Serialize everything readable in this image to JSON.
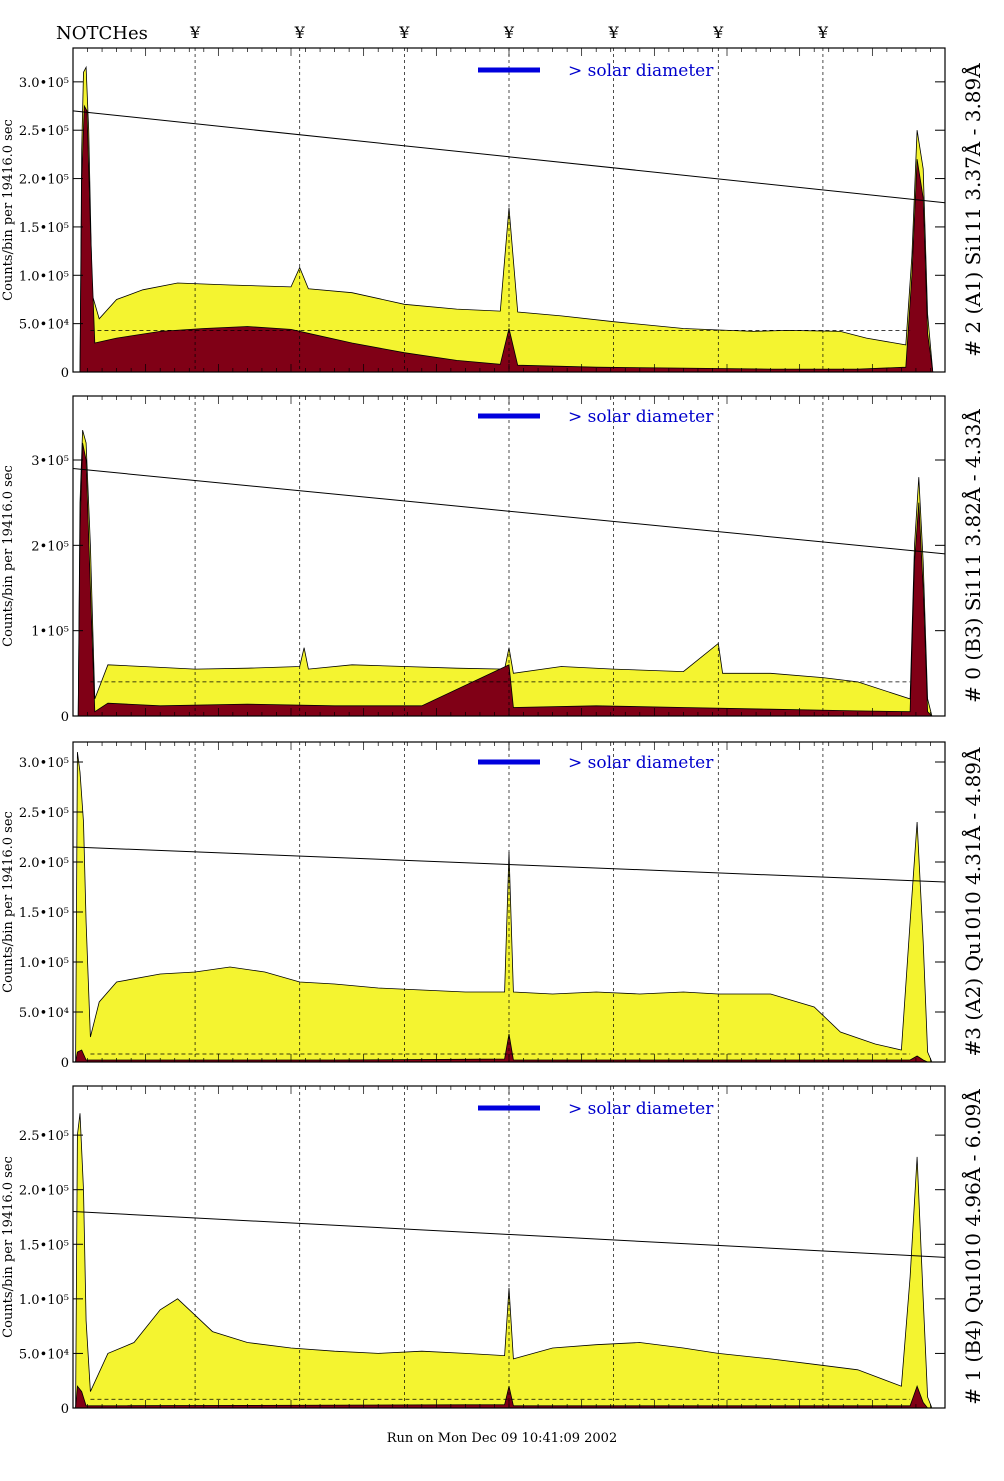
{
  "header": {
    "notch_label": "NOTCHes",
    "notch_symbol": "¥",
    "notch_x": [
      0.14,
      0.26,
      0.38,
      0.5,
      0.62,
      0.74,
      0.86
    ]
  },
  "legend_label": "> solar diameter",
  "footer": "Run on Mon Dec 09 10:41:09 2002",
  "colors": {
    "fill_total": "#f4f430",
    "fill_sub": "#800016",
    "legend_line": "#0000dd",
    "legend_text": "#0000cc",
    "trend": "#000000"
  },
  "chart_data": [
    {
      "type": "area",
      "title": "# 2 (A1) Si111  3.37Å - 3.89Å",
      "ylabel": "Counts/bin per  19416.0 sec",
      "ylim": [
        0,
        335000
      ],
      "yticks": [
        {
          "v": 0,
          "label": "0"
        },
        {
          "v": 50000,
          "label": "5.0•10⁴"
        },
        {
          "v": 100000,
          "label": "1.0•10⁵"
        },
        {
          "v": 150000,
          "label": "1.5•10⁵"
        },
        {
          "v": 200000,
          "label": "2.0•10⁵"
        },
        {
          "v": 250000,
          "label": "2.5•10⁵"
        },
        {
          "v": 300000,
          "label": "3.0•10⁵"
        }
      ],
      "trend": [
        270000,
        175000
      ],
      "dashed_level": 43000,
      "series": [
        {
          "key": "total",
          "points": [
            [
              0,
              0
            ],
            [
              0.008,
              0
            ],
            [
              0.01,
              230000
            ],
            [
              0.012,
              310000
            ],
            [
              0.015,
              315000
            ],
            [
              0.018,
              250000
            ],
            [
              0.022,
              80000
            ],
            [
              0.03,
              55000
            ],
            [
              0.05,
              75000
            ],
            [
              0.08,
              85000
            ],
            [
              0.12,
              92000
            ],
            [
              0.18,
              90000
            ],
            [
              0.25,
              88000
            ],
            [
              0.26,
              108000
            ],
            [
              0.27,
              86000
            ],
            [
              0.32,
              82000
            ],
            [
              0.38,
              70000
            ],
            [
              0.44,
              65000
            ],
            [
              0.49,
              63000
            ],
            [
              0.5,
              170000
            ],
            [
              0.51,
              62000
            ],
            [
              0.56,
              58000
            ],
            [
              0.62,
              52000
            ],
            [
              0.7,
              45000
            ],
            [
              0.78,
              42000
            ],
            [
              0.82,
              43000
            ],
            [
              0.88,
              42000
            ],
            [
              0.91,
              35000
            ],
            [
              0.955,
              28000
            ],
            [
              0.962,
              120000
            ],
            [
              0.968,
              250000
            ],
            [
              0.975,
              210000
            ],
            [
              0.98,
              60000
            ],
            [
              0.986,
              0
            ],
            [
              1,
              0
            ]
          ]
        },
        {
          "key": "sub",
          "points": [
            [
              0,
              0
            ],
            [
              0.008,
              0
            ],
            [
              0.01,
              200000
            ],
            [
              0.013,
              275000
            ],
            [
              0.016,
              270000
            ],
            [
              0.02,
              150000
            ],
            [
              0.025,
              30000
            ],
            [
              0.05,
              35000
            ],
            [
              0.1,
              42000
            ],
            [
              0.15,
              45000
            ],
            [
              0.2,
              47000
            ],
            [
              0.25,
              44000
            ],
            [
              0.27,
              40000
            ],
            [
              0.32,
              30000
            ],
            [
              0.38,
              20000
            ],
            [
              0.44,
              12000
            ],
            [
              0.49,
              8000
            ],
            [
              0.5,
              45000
            ],
            [
              0.51,
              7000
            ],
            [
              0.6,
              5000
            ],
            [
              0.7,
              4000
            ],
            [
              0.8,
              3000
            ],
            [
              0.9,
              3000
            ],
            [
              0.955,
              5000
            ],
            [
              0.962,
              100000
            ],
            [
              0.968,
              220000
            ],
            [
              0.975,
              180000
            ],
            [
              0.98,
              40000
            ],
            [
              0.986,
              0
            ],
            [
              1,
              0
            ]
          ]
        }
      ]
    },
    {
      "type": "area",
      "title": "# 0 (B3) Si111  3.82Å - 4.33Å",
      "ylabel": "Counts/bin per  19416.0 sec",
      "ylim": [
        0,
        375000
      ],
      "yticks": [
        {
          "v": 0,
          "label": "0"
        },
        {
          "v": 100000,
          "label": "1•10⁵"
        },
        {
          "v": 200000,
          "label": "2•10⁵"
        },
        {
          "v": 300000,
          "label": "3•10⁵"
        }
      ],
      "trend": [
        290000,
        190000
      ],
      "dashed_level": 40000,
      "series": [
        {
          "key": "total",
          "points": [
            [
              0,
              0
            ],
            [
              0.006,
              0
            ],
            [
              0.008,
              250000
            ],
            [
              0.011,
              335000
            ],
            [
              0.015,
              320000
            ],
            [
              0.02,
              200000
            ],
            [
              0.025,
              20000
            ],
            [
              0.04,
              60000
            ],
            [
              0.08,
              58000
            ],
            [
              0.14,
              55000
            ],
            [
              0.2,
              56000
            ],
            [
              0.26,
              58000
            ],
            [
              0.265,
              80000
            ],
            [
              0.27,
              55000
            ],
            [
              0.32,
              60000
            ],
            [
              0.38,
              58000
            ],
            [
              0.44,
              56000
            ],
            [
              0.495,
              55000
            ],
            [
              0.5,
              80000
            ],
            [
              0.505,
              50000
            ],
            [
              0.56,
              58000
            ],
            [
              0.62,
              55000
            ],
            [
              0.7,
              52000
            ],
            [
              0.74,
              85000
            ],
            [
              0.745,
              50000
            ],
            [
              0.8,
              50000
            ],
            [
              0.86,
              45000
            ],
            [
              0.9,
              40000
            ],
            [
              0.96,
              20000
            ],
            [
              0.965,
              200000
            ],
            [
              0.97,
              280000
            ],
            [
              0.975,
              180000
            ],
            [
              0.98,
              20000
            ],
            [
              0.985,
              0
            ],
            [
              1,
              0
            ]
          ]
        },
        {
          "key": "sub",
          "points": [
            [
              0,
              0
            ],
            [
              0.006,
              0
            ],
            [
              0.008,
              220000
            ],
            [
              0.011,
              320000
            ],
            [
              0.015,
              300000
            ],
            [
              0.02,
              150000
            ],
            [
              0.025,
              5000
            ],
            [
              0.04,
              15000
            ],
            [
              0.1,
              12000
            ],
            [
              0.2,
              14000
            ],
            [
              0.3,
              12000
            ],
            [
              0.4,
              12000
            ],
            [
              0.5,
              60000
            ],
            [
              0.505,
              10000
            ],
            [
              0.6,
              12000
            ],
            [
              0.7,
              10000
            ],
            [
              0.8,
              8000
            ],
            [
              0.9,
              6000
            ],
            [
              0.96,
              5000
            ],
            [
              0.965,
              180000
            ],
            [
              0.97,
              250000
            ],
            [
              0.975,
              150000
            ],
            [
              0.98,
              5000
            ],
            [
              0.985,
              0
            ],
            [
              1,
              0
            ]
          ]
        }
      ]
    },
    {
      "type": "area",
      "title": "#3 (A2) Qu1010  4.31Å - 4.89Å",
      "ylabel": "Counts/bin per  19416.0 sec",
      "ylim": [
        0,
        320000
      ],
      "yticks": [
        {
          "v": 0,
          "label": "0"
        },
        {
          "v": 50000,
          "label": "5.0•10⁴"
        },
        {
          "v": 100000,
          "label": "1.0•10⁵"
        },
        {
          "v": 150000,
          "label": "1.5•10⁵"
        },
        {
          "v": 200000,
          "label": "2.0•10⁵"
        },
        {
          "v": 250000,
          "label": "2.5•10⁵"
        },
        {
          "v": 300000,
          "label": "3.0•10⁵"
        }
      ],
      "trend": [
        215000,
        180000
      ],
      "dashed_level": 8000,
      "series": [
        {
          "key": "total",
          "points": [
            [
              0,
              0
            ],
            [
              0.003,
              0
            ],
            [
              0.005,
              310000
            ],
            [
              0.008,
              290000
            ],
            [
              0.012,
              240000
            ],
            [
              0.015,
              140000
            ],
            [
              0.02,
              25000
            ],
            [
              0.03,
              60000
            ],
            [
              0.05,
              80000
            ],
            [
              0.1,
              88000
            ],
            [
              0.14,
              90000
            ],
            [
              0.18,
              95000
            ],
            [
              0.22,
              90000
            ],
            [
              0.26,
              80000
            ],
            [
              0.3,
              78000
            ],
            [
              0.35,
              74000
            ],
            [
              0.4,
              72000
            ],
            [
              0.45,
              70000
            ],
            [
              0.495,
              70000
            ],
            [
              0.5,
              210000
            ],
            [
              0.505,
              70000
            ],
            [
              0.55,
              68000
            ],
            [
              0.6,
              70000
            ],
            [
              0.65,
              68000
            ],
            [
              0.7,
              70000
            ],
            [
              0.74,
              68000
            ],
            [
              0.8,
              68000
            ],
            [
              0.85,
              55000
            ],
            [
              0.88,
              30000
            ],
            [
              0.92,
              18000
            ],
            [
              0.95,
              12000
            ],
            [
              0.96,
              140000
            ],
            [
              0.968,
              240000
            ],
            [
              0.975,
              120000
            ],
            [
              0.98,
              10000
            ],
            [
              0.985,
              0
            ],
            [
              1,
              0
            ]
          ]
        },
        {
          "key": "sub",
          "points": [
            [
              0,
              0
            ],
            [
              0.003,
              0
            ],
            [
              0.005,
              10000
            ],
            [
              0.01,
              12000
            ],
            [
              0.015,
              2000
            ],
            [
              0.3,
              2000
            ],
            [
              0.495,
              3000
            ],
            [
              0.5,
              28000
            ],
            [
              0.505,
              2000
            ],
            [
              0.96,
              2000
            ],
            [
              0.968,
              6000
            ],
            [
              0.975,
              2000
            ],
            [
              0.98,
              0
            ],
            [
              1,
              0
            ]
          ]
        }
      ]
    },
    {
      "type": "area",
      "title": "# 1 (B4) Qu1010 4.96Å - 6.09Å",
      "ylabel": "Counts/bin per  19416.0 sec",
      "ylim": [
        0,
        295000
      ],
      "yticks": [
        {
          "v": 0,
          "label": "0"
        },
        {
          "v": 50000,
          "label": "5.0•10⁴"
        },
        {
          "v": 100000,
          "label": "1.0•10⁵"
        },
        {
          "v": 150000,
          "label": "1.5•10⁵"
        },
        {
          "v": 200000,
          "label": "2.0•10⁵"
        },
        {
          "v": 250000,
          "label": "2.5•10⁵"
        }
      ],
      "trend": [
        180000,
        138000
      ],
      "dashed_level": 8000,
      "series": [
        {
          "key": "total",
          "points": [
            [
              0,
              0
            ],
            [
              0.003,
              0
            ],
            [
              0.005,
              250000
            ],
            [
              0.008,
              270000
            ],
            [
              0.012,
              200000
            ],
            [
              0.015,
              80000
            ],
            [
              0.02,
              15000
            ],
            [
              0.04,
              50000
            ],
            [
              0.07,
              60000
            ],
            [
              0.1,
              90000
            ],
            [
              0.12,
              100000
            ],
            [
              0.14,
              85000
            ],
            [
              0.16,
              70000
            ],
            [
              0.2,
              60000
            ],
            [
              0.25,
              55000
            ],
            [
              0.3,
              52000
            ],
            [
              0.35,
              50000
            ],
            [
              0.4,
              52000
            ],
            [
              0.45,
              50000
            ],
            [
              0.495,
              48000
            ],
            [
              0.5,
              110000
            ],
            [
              0.505,
              45000
            ],
            [
              0.55,
              55000
            ],
            [
              0.6,
              58000
            ],
            [
              0.65,
              60000
            ],
            [
              0.7,
              55000
            ],
            [
              0.74,
              50000
            ],
            [
              0.8,
              45000
            ],
            [
              0.85,
              40000
            ],
            [
              0.9,
              35000
            ],
            [
              0.95,
              20000
            ],
            [
              0.96,
              120000
            ],
            [
              0.968,
              230000
            ],
            [
              0.975,
              100000
            ],
            [
              0.98,
              10000
            ],
            [
              0.985,
              0
            ],
            [
              1,
              0
            ]
          ]
        },
        {
          "key": "sub",
          "points": [
            [
              0,
              0
            ],
            [
              0.003,
              0
            ],
            [
              0.005,
              20000
            ],
            [
              0.01,
              15000
            ],
            [
              0.015,
              2000
            ],
            [
              0.495,
              3000
            ],
            [
              0.5,
              20000
            ],
            [
              0.505,
              2000
            ],
            [
              0.96,
              2000
            ],
            [
              0.968,
              20000
            ],
            [
              0.975,
              5000
            ],
            [
              0.98,
              0
            ],
            [
              1,
              0
            ]
          ]
        }
      ]
    }
  ]
}
